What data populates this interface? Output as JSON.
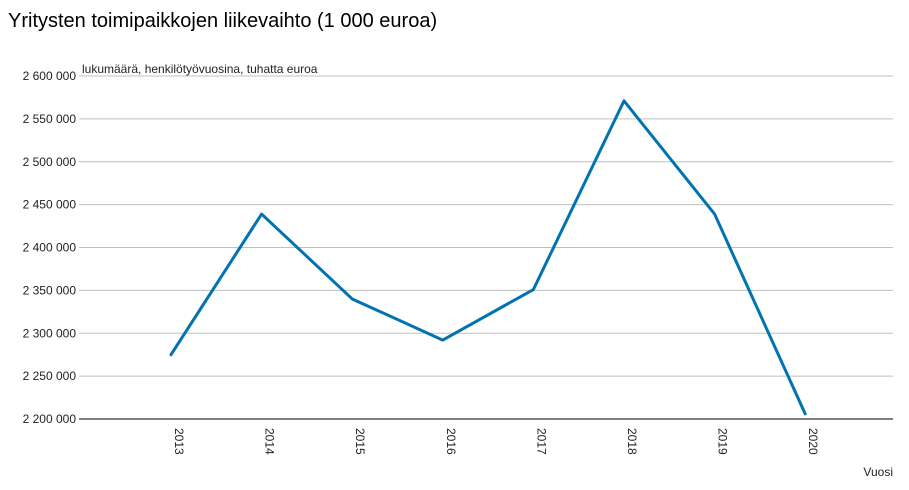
{
  "title": "Yritysten toimipaikkojen liikevaihto (1 000 euroa)",
  "chart_data": {
    "type": "line",
    "title": "Yritysten toimipaikkojen liikevaihto (1 000 euroa)",
    "unit_label": "lukumäärä, henkilötyövuosina, tuhatta euroa",
    "xlabel": "Vuosi",
    "ylabel": "",
    "categories": [
      "2013",
      "2014",
      "2015",
      "2016",
      "2017",
      "2018",
      "2019",
      "2020"
    ],
    "series": [
      {
        "values": [
          2275000,
          2439000,
          2340000,
          2292000,
          2351000,
          2571000,
          2439000,
          2206000
        ]
      }
    ],
    "ylim": [
      2200000,
      2600000
    ],
    "yticks": [
      2200000,
      2250000,
      2300000,
      2350000,
      2400000,
      2450000,
      2500000,
      2550000,
      2600000
    ],
    "ytick_labels": [
      "2 200 000",
      "2 250 000",
      "2 300 000",
      "2 350 000",
      "2 400 000",
      "2 450 000",
      "2 500 000",
      "2 550 000",
      "2 600 000"
    ],
    "grid": true,
    "line_color": "#0073b0"
  }
}
